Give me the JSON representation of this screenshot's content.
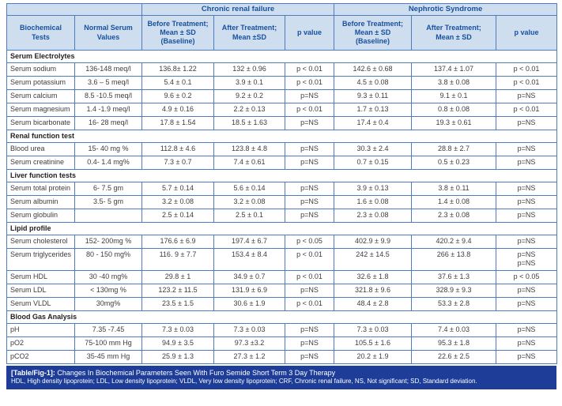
{
  "colors": {
    "border": "#4e7dbe",
    "header_bg": "#cfdeef",
    "header_text": "#17509e",
    "body_text": "#3d3d3d",
    "section_text": "#222222",
    "footer_bg": "#1d3d99",
    "footer_text": "#ffffff"
  },
  "header": {
    "tests_label": "Biochemical\nTests",
    "normal_label": "Normal Serum\nValues",
    "groups": [
      {
        "label": "Chronic renal failure",
        "before": "Before Treatment;\nMean ± SD\n(Baseline)",
        "after": "After Treatment;\nMean ±SD",
        "p": "p value"
      },
      {
        "label": "Nephrotic Syndrome",
        "before": "Before Treatment;\nMean ± SD\n(Baseline)",
        "after": "After Treatment;\nMean ± SD",
        "p": "p value"
      }
    ]
  },
  "sections": [
    {
      "title": "Serum Electrolytes",
      "rows": [
        {
          "test": "Serum sodium",
          "normal": "136-148 meq/l",
          "crf_before": "136.8± 1.22",
          "crf_after": "132 ± 0.96",
          "crf_p": "p < 0.01",
          "ns_before": "142.6 ± 0.68",
          "ns_after": "137.4 ± 1.07",
          "ns_p": "p < 0.01"
        },
        {
          "test": "Serum potassium",
          "normal": "3.6 – 5 meq/l",
          "crf_before": "5.4 ± 0.1",
          "crf_after": "3.9 ± 0.1",
          "crf_p": "p < 0.01",
          "ns_before": "4.5 ± 0.08",
          "ns_after": "3.8 ± 0.08",
          "ns_p": "p < 0.01"
        },
        {
          "test": "Serum calcium",
          "normal": "8.5 -10.5 meq/l",
          "crf_before": "9.6 ± 0.2",
          "crf_after": "9.2 ± 0.2",
          "crf_p": "p=NS",
          "ns_before": "9.3 ± 0.11",
          "ns_after": "9.1 ± 0.1",
          "ns_p": "p=NS"
        },
        {
          "test": "Serum magnesium",
          "normal": "1.4 -1.9 meq/l",
          "crf_before": "4.9 ± 0.16",
          "crf_after": "2.2 ± 0.13",
          "crf_p": "p < 0.01",
          "ns_before": "1.7 ± 0.13",
          "ns_after": "0.8 ± 0.08",
          "ns_p": "p < 0.01"
        },
        {
          "test": "Serum bicarbonate",
          "normal": "16- 28 meq/l",
          "crf_before": "17.8 ± 1.54",
          "crf_after": "18.5 ± 1.63",
          "crf_p": "p=NS",
          "ns_before": "17.4 ± 0.4",
          "ns_after": "19.3 ± 0.61",
          "ns_p": "p=NS"
        }
      ]
    },
    {
      "title": "Renal function test",
      "rows": [
        {
          "test": "Blood urea",
          "normal": "15- 40 mg %",
          "crf_before": "112.8 ± 4.6",
          "crf_after": "123.8 ± 4.8",
          "crf_p": "p=NS",
          "ns_before": "30.3 ± 2.4",
          "ns_after": "28.8 ± 2.7",
          "ns_p": "p=NS"
        },
        {
          "test": "Serum creatinine",
          "normal": "0.4- 1.4 mg%",
          "crf_before": "7.3 ± 0.7",
          "crf_after": "7.4 ± 0.61",
          "crf_p": "p=NS",
          "ns_before": "0.7 ± 0.15",
          "ns_after": "0.5 ± 0.23",
          "ns_p": "p=NS"
        }
      ]
    },
    {
      "title": "Liver function tests",
      "rows": [
        {
          "test": "Serum total protein",
          "normal": "6- 7.5 gm",
          "crf_before": "5.7 ± 0.14",
          "crf_after": "5.6 ± 0.14",
          "crf_p": "p=NS",
          "ns_before": "3.9 ± 0.13",
          "ns_after": "3.8 ± 0.11",
          "ns_p": "p=NS"
        },
        {
          "test": "Serum albumin",
          "normal": "3.5- 5 gm",
          "crf_before": "3.2 ± 0.08",
          "crf_after": "3.2 ± 0.08",
          "crf_p": "p=NS",
          "ns_before": "1.6 ± 0.08",
          "ns_after": "1.4 ± 0.08",
          "ns_p": "p=NS"
        },
        {
          "test": "Serum globulin",
          "normal": "",
          "crf_before": "2.5 ± 0.14",
          "crf_after": "2.5 ± 0.1",
          "crf_p": "p=NS",
          "ns_before": "2.3 ± 0.08",
          "ns_after": "2.3 ± 0.08",
          "ns_p": "p=NS"
        }
      ]
    },
    {
      "title": "Lipid profile",
      "rows": [
        {
          "test": "Serum cholesterol",
          "normal": "152- 200mg %",
          "crf_before": "176.6 ± 6.9",
          "crf_after": "197.4 ± 6.7",
          "crf_p": "p < 0.05",
          "ns_before": "402.9 ± 9.9",
          "ns_after": "420.2 ± 9.4",
          "ns_p": "p=NS"
        },
        {
          "test": "Serum triglycerides",
          "normal": "80 - 150 mg%",
          "crf_before": "116. 9 ± 7.7",
          "crf_after": "153.4 ± 8.4",
          "crf_p": "p < 0.01",
          "ns_before": "242 ± 14.5",
          "ns_after": "266 ± 13.8",
          "ns_p": "p=NS\np=NS",
          "tall": true
        },
        {
          "test": "Serum HDL",
          "normal": "30 -40 mg%",
          "crf_before": "29.8 ± 1",
          "crf_after": "34.9 ± 0.7",
          "crf_p": "p < 0.01",
          "ns_before": "32.6 ± 1.8",
          "ns_after": "37.6 ± 1.3",
          "ns_p": "p < 0.05"
        },
        {
          "test": "Serum LDL",
          "normal": "< 130mg %",
          "crf_before": "123.2 ± 11.5",
          "crf_after": "131.9 ± 6.9",
          "crf_p": "p=NS",
          "ns_before": "321.8 ± 9.6",
          "ns_after": "328.9 ± 9.3",
          "ns_p": "p=NS"
        },
        {
          "test": "Serum VLDL",
          "normal": "30mg%",
          "crf_before": "23.5 ± 1.5",
          "crf_after": "30.6 ± 1.9",
          "crf_p": "p < 0.01",
          "ns_before": "48.4 ± 2.8",
          "ns_after": "53.3 ± 2.8",
          "ns_p": "p=NS"
        }
      ]
    },
    {
      "title": "Blood Gas Analysis",
      "rows": [
        {
          "test": "pH",
          "normal": "7.35 -7.45",
          "crf_before": "7.3 ± 0.03",
          "crf_after": "7.3 ± 0.03",
          "crf_p": "p=NS",
          "ns_before": "7.3 ± 0.03",
          "ns_after": "7.4 ± 0.03",
          "ns_p": "p=NS"
        },
        {
          "test": "pO2",
          "normal": "75-100 mm Hg",
          "crf_before": "94.9 ± 3.5",
          "crf_after": "97.3 ±3.2",
          "crf_p": "p=NS",
          "ns_before": "105.5 ± 1.6",
          "ns_after": "95.3 ± 1.8",
          "ns_p": "p=NS"
        },
        {
          "test": "pCO2",
          "normal": "35-45 mm Hg",
          "crf_before": "25.9 ± 1.3",
          "crf_after": "27.3 ± 1.2",
          "crf_p": "p=NS",
          "ns_before": "20.2 ± 1.9",
          "ns_after": "22.6 ± 2.5",
          "ns_p": "p=NS"
        }
      ]
    }
  ],
  "footer": {
    "caption_label": "[Table/Fig-1]:",
    "caption_text": "Changes In Biochemical Parameters Seen With Furo Semide Short Term 3 Day Therapy",
    "abbreviations": "HDL, High density lipoprotein; LDL, Low density lipoprotein; VLDL, Very low density lipoprotein; CRF, Chronic renal failure, NS, Not significant; SD, Standard deviation."
  }
}
